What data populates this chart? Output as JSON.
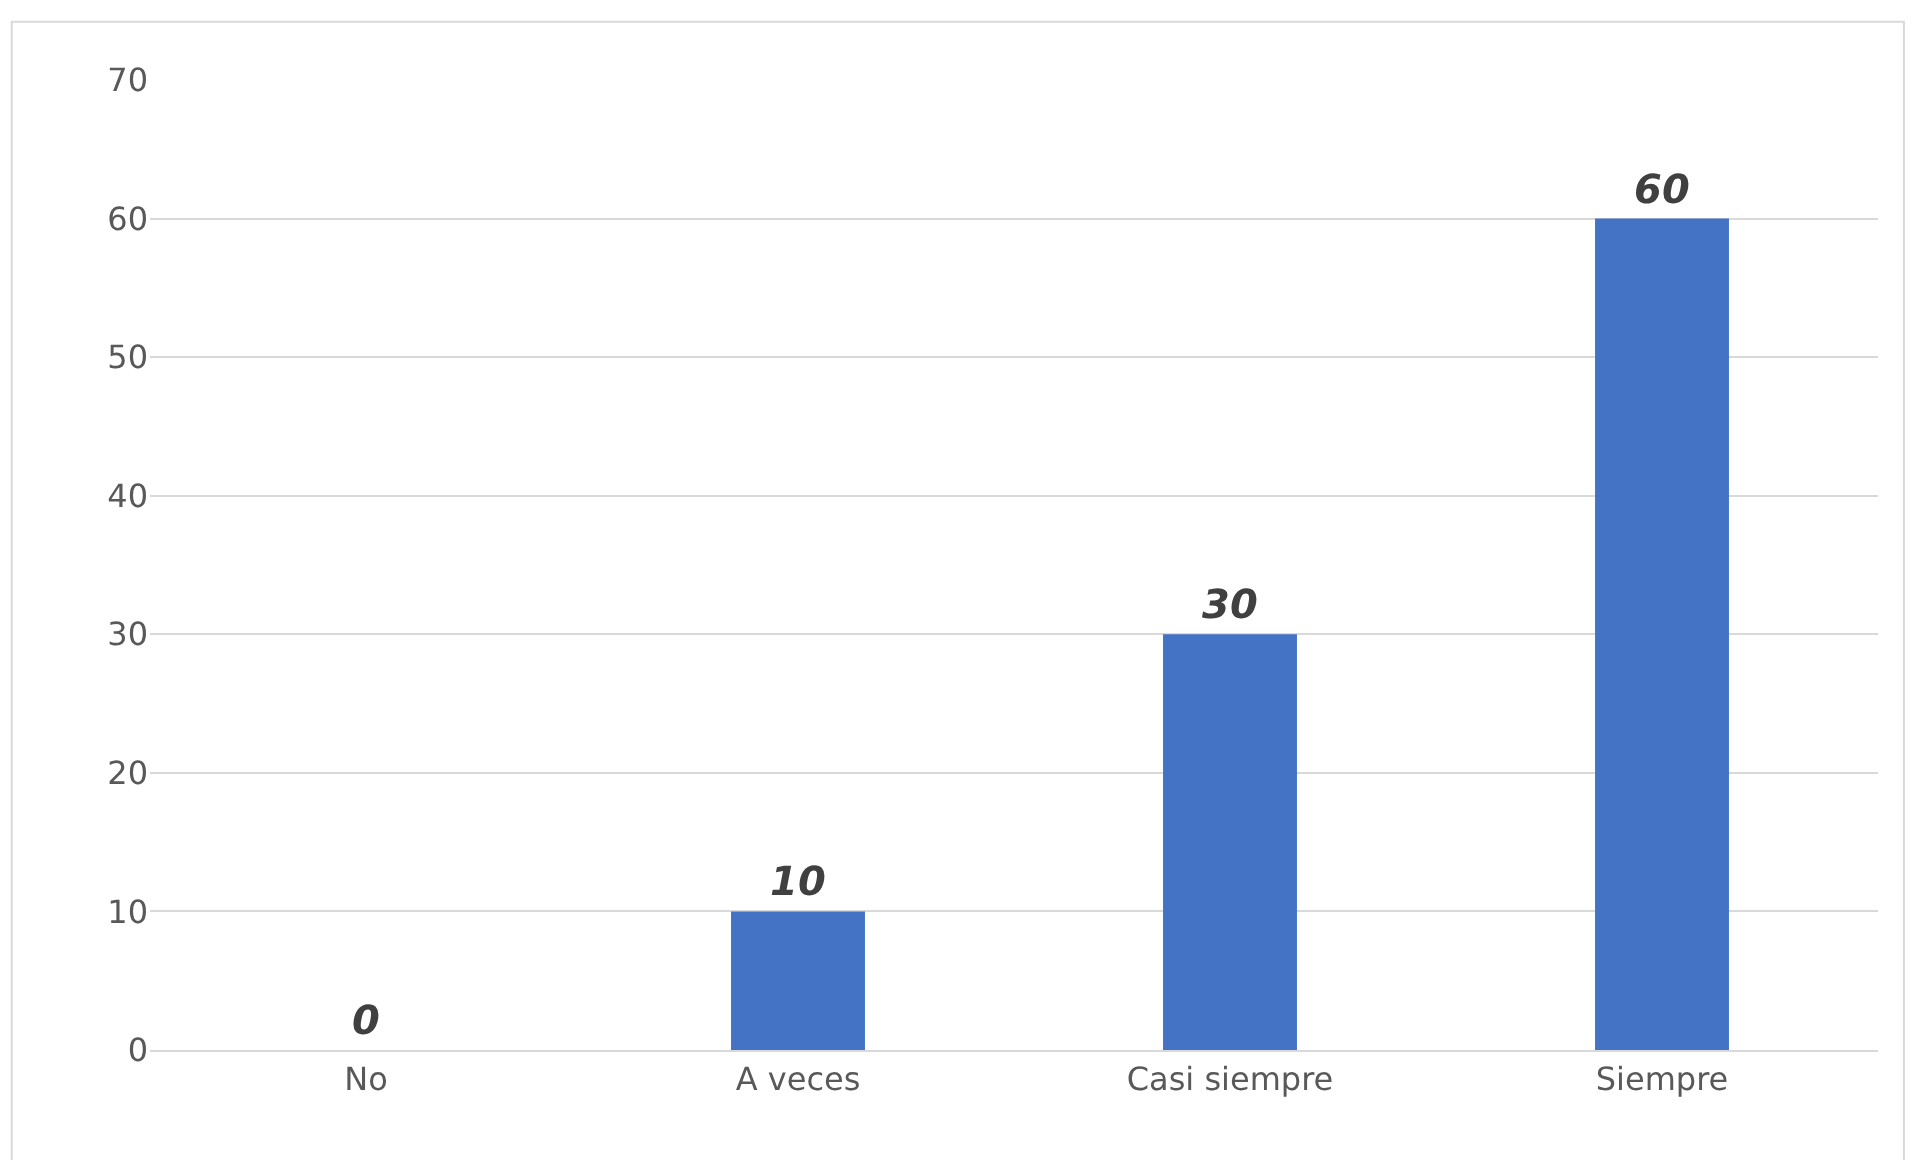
{
  "chart_data": {
    "type": "bar",
    "categories": [
      "No",
      "A veces",
      "Casi siempre",
      "Siempre"
    ],
    "values": [
      0,
      10,
      30,
      60
    ],
    "color": "#4472c4",
    "ylim": [
      0,
      70
    ],
    "yticks": [
      0,
      10,
      20,
      30,
      40,
      50,
      60,
      70
    ],
    "grid": "y",
    "data_labels": true,
    "legend": false
  }
}
